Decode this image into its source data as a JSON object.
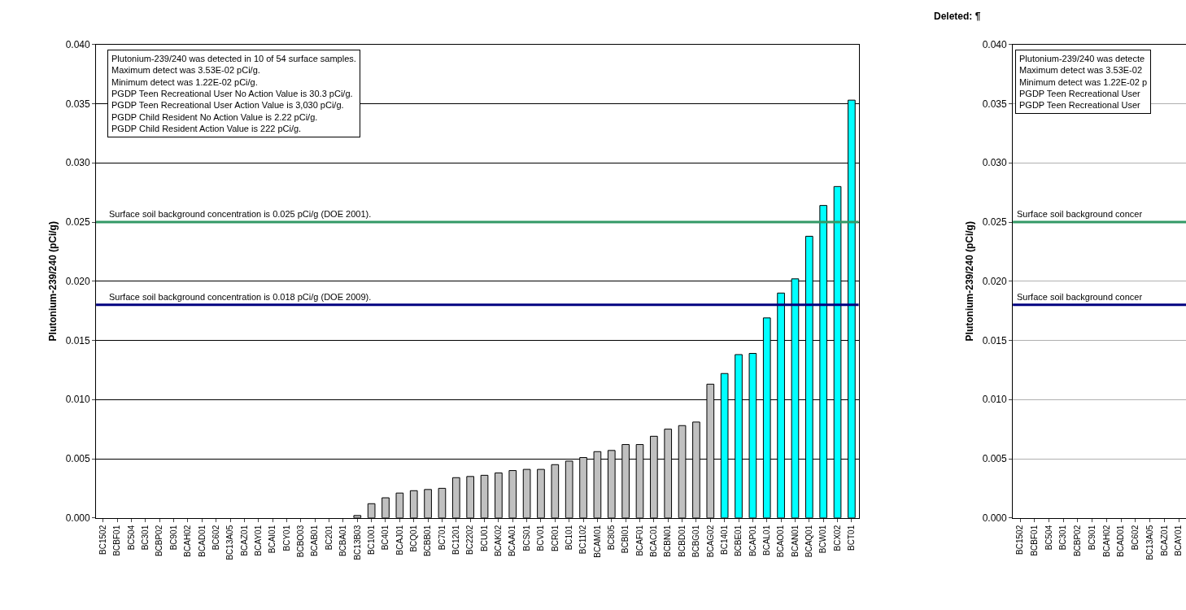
{
  "chart_data": [
    {
      "type": "bar",
      "ylabel": "Plutonium-239/240 (pCi/g)",
      "categories": [
        "BC1502",
        "BCBF01",
        "BC504",
        "BC301",
        "BCBP02",
        "BC901",
        "BCAH02",
        "BCAD01",
        "BC602",
        "BC13A05",
        "BCAZ01",
        "BCAY01",
        "BCAI01",
        "BCY01",
        "BCBO03",
        "BCAB01",
        "BC201",
        "BCBA01",
        "BC13B03",
        "BC1001",
        "BC401",
        "BCAJ01",
        "BCQ01",
        "BCBB01",
        "BC701",
        "BC1201",
        "BC2202",
        "BCU01",
        "BCAK02",
        "BCAA01",
        "BCS01",
        "BCV01",
        "BCR01",
        "BC101",
        "BC1102",
        "BCAM01",
        "BC805",
        "BCBI01",
        "BCAF01",
        "BCAC01",
        "BCBN01",
        "BCBD01",
        "BCBG01",
        "BCAG02",
        "BC1401",
        "BCBE01",
        "BCAP01",
        "BCAL01",
        "BCAO01",
        "BCAN01",
        "BCAQ01",
        "BCW01",
        "BCX02",
        "BCT01"
      ],
      "values": [
        0,
        0,
        0,
        0,
        0,
        0,
        0,
        0,
        0,
        0,
        0,
        0,
        0,
        0,
        0,
        0,
        0,
        0,
        0.0002,
        0.0012,
        0.0017,
        0.0021,
        0.0023,
        0.0024,
        0.0025,
        0.0034,
        0.0035,
        0.0036,
        0.0038,
        0.004,
        0.0041,
        0.0041,
        0.0045,
        0.0048,
        0.0051,
        0.0056,
        0.0057,
        0.0062,
        0.0062,
        0.0069,
        0.0075,
        0.0078,
        0.0081,
        0.0113,
        0.0122,
        0.0138,
        0.0139,
        0.0169,
        0.019,
        0.0202,
        0.0238,
        0.0264,
        0.028,
        0.0353
      ],
      "colors": [
        "#c0c0c0",
        "#c0c0c0",
        "#c0c0c0",
        "#c0c0c0",
        "#c0c0c0",
        "#c0c0c0",
        "#c0c0c0",
        "#c0c0c0",
        "#c0c0c0",
        "#c0c0c0",
        "#c0c0c0",
        "#c0c0c0",
        "#c0c0c0",
        "#c0c0c0",
        "#c0c0c0",
        "#c0c0c0",
        "#c0c0c0",
        "#c0c0c0",
        "#c0c0c0",
        "#c0c0c0",
        "#c0c0c0",
        "#c0c0c0",
        "#c0c0c0",
        "#c0c0c0",
        "#c0c0c0",
        "#c0c0c0",
        "#c0c0c0",
        "#c0c0c0",
        "#c0c0c0",
        "#c0c0c0",
        "#c0c0c0",
        "#c0c0c0",
        "#c0c0c0",
        "#c0c0c0",
        "#c0c0c0",
        "#c0c0c0",
        "#c0c0c0",
        "#c0c0c0",
        "#c0c0c0",
        "#c0c0c0",
        "#c0c0c0",
        "#c0c0c0",
        "#c0c0c0",
        "#c0c0c0",
        "#00ffff",
        "#00ffff",
        "#00ffff",
        "#00ffff",
        "#00ffff",
        "#00ffff",
        "#00ffff",
        "#00ffff",
        "#00ffff",
        "#00ffff"
      ],
      "ylim": [
        0,
        0.04
      ],
      "yticks": [
        {
          "value": 0,
          "label": "0.000"
        },
        {
          "value": 0.005,
          "label": "0.005"
        },
        {
          "value": 0.01,
          "label": "0.010"
        },
        {
          "value": 0.015,
          "label": "0.015"
        },
        {
          "value": 0.02,
          "label": "0.020"
        },
        {
          "value": 0.025,
          "label": "0.025"
        },
        {
          "value": 0.03,
          "label": "0.030"
        },
        {
          "value": 0.035,
          "label": "0.035"
        },
        {
          "value": 0.04,
          "label": "0.040"
        }
      ],
      "grid": "y",
      "ref_lines": [
        {
          "axis": "y",
          "value": 0.025,
          "label": "Surface soil background concentration is 0.025 pCi/g (DOE 2001).",
          "color": "#339966"
        },
        {
          "axis": "y",
          "value": 0.018,
          "label": "Surface soil background concentration is 0.018 pCi/g (DOE 2009).",
          "color": "#000080"
        }
      ],
      "annotations": [
        "Plutonium-239/240 was detected in 10 of 54 surface samples.",
        "Maximum detect was 3.53E-02 pCi/g.",
        "Minimum detect was 1.22E-02 pCi/g.",
        "PGDP Teen Recreational User No Action Value is 30.3 pCi/g.",
        "PGDP Teen Recreational User Action Value is 3,030 pCi/g.",
        "PGDP Child Resident No Action Value is 2.22 pCi/g.",
        "PGDP Child Resident Action Value is 222 pCi/g."
      ]
    },
    {
      "type": "bar",
      "title": "Deleted: ¶",
      "ylabel": "Plutonium-239/240 (pCi/g)",
      "categories": [
        "BC1502",
        "BCBF01",
        "BC504",
        "BC301",
        "BCBP02",
        "BC901",
        "BCAH02",
        "BCAD01",
        "BC602",
        "BC13A05",
        "BCAZ01",
        "BCAY01"
      ],
      "values": [
        0,
        0,
        0,
        0,
        0,
        0,
        0,
        0,
        0,
        0,
        0,
        0
      ],
      "ylim": [
        0,
        0.04
      ],
      "yticks": [
        {
          "value": 0,
          "label": "0.000"
        },
        {
          "value": 0.005,
          "label": "0.005"
        },
        {
          "value": 0.01,
          "label": "0.010"
        },
        {
          "value": 0.015,
          "label": "0.015"
        },
        {
          "value": 0.02,
          "label": "0.020"
        },
        {
          "value": 0.025,
          "label": "0.025"
        },
        {
          "value": 0.03,
          "label": "0.030"
        },
        {
          "value": 0.035,
          "label": "0.035"
        },
        {
          "value": 0.04,
          "label": "0.040"
        }
      ],
      "grid": "y",
      "ref_lines": [
        {
          "axis": "y",
          "value": 0.025,
          "label": "Surface soil background concer",
          "color": "#339966"
        },
        {
          "axis": "y",
          "value": 0.018,
          "label": "Surface soil background concer",
          "color": "#000080"
        }
      ],
      "annotations": [
        "Plutonium-239/240 was detecte",
        "Maximum detect was 3.53E-02",
        "Minimum detect was 1.22E-02 p",
        "PGDP Teen Recreational User",
        "PGDP Teen Recreational User"
      ]
    }
  ]
}
